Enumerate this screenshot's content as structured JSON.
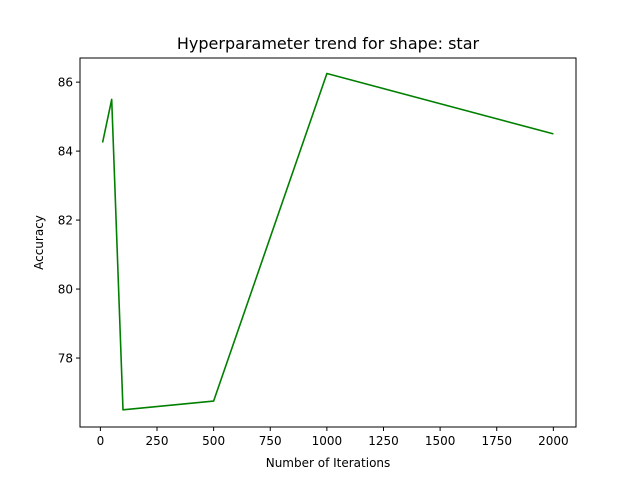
{
  "chart_data": {
    "type": "line",
    "title": "Hyperparameter trend for shape: star",
    "xlabel": "Number of Iterations",
    "ylabel": "Accuracy",
    "xlim": [
      -90,
      2100
    ],
    "ylim": [
      76.0,
      86.7
    ],
    "x_ticks": [
      0,
      250,
      500,
      750,
      1000,
      1250,
      1500,
      1750,
      2000
    ],
    "y_ticks": [
      78,
      80,
      82,
      84,
      86
    ],
    "grid": false,
    "legend": "none",
    "series": [
      {
        "color": "#008000",
        "x": [
          10,
          50,
          100,
          500,
          1000,
          2000
        ],
        "y": [
          84.25,
          85.5,
          76.5,
          76.75,
          86.25,
          84.5
        ]
      }
    ]
  }
}
